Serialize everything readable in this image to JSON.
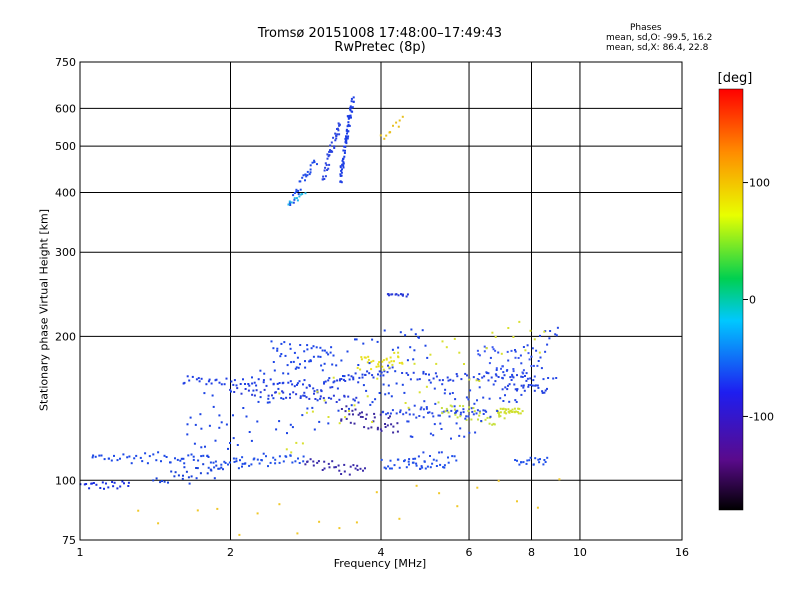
{
  "header": {
    "title_line1": "Tromsø 20151008 17:48:00–17:49:43",
    "title_line2": "RwPretec (8p)"
  },
  "phase_box": {
    "title": "Phases",
    "line1": "mean, sd,O: -99.5, 16.2",
    "line2": "mean, sd,X:  86.4, 22.8"
  },
  "colorbar": {
    "label": "[deg]",
    "ticks": [
      "100",
      "0",
      "-100"
    ]
  },
  "chart_data": {
    "type": "scatter",
    "xlabel": "Frequency [MHz]",
    "ylabel": "Stationary phase Virtual Height [km]",
    "xscale": "log",
    "yscale": "log",
    "xlim": [
      1,
      16
    ],
    "ylim": [
      75,
      750
    ],
    "x_ticks": [
      1,
      2,
      4,
      6,
      8,
      10,
      16
    ],
    "y_ticks": [
      75,
      100,
      200,
      300,
      400,
      500,
      600,
      750
    ],
    "grid": true,
    "colorbar_range": [
      -180,
      180
    ],
    "traces": [
      {
        "x0": 1.0,
        "x1": 1.25,
        "y0": 98,
        "y1": 98,
        "color": "#1a2de0",
        "n": 22,
        "jitter": 2
      },
      {
        "x0": 1.05,
        "x1": 1.8,
        "y0": 112,
        "y1": 112,
        "color": "#1b48e6",
        "n": 45,
        "jitter": 3
      },
      {
        "x0": 1.4,
        "x1": 1.9,
        "y0": 100,
        "y1": 108,
        "color": "#1740d8",
        "n": 25,
        "jitter": 3
      },
      {
        "x0": 1.8,
        "x1": 2.8,
        "y0": 108,
        "y1": 112,
        "color": "#2150e8",
        "n": 45,
        "jitter": 3
      },
      {
        "x0": 2.8,
        "x1": 3.7,
        "y0": 110,
        "y1": 104,
        "color": "#3a2aa8",
        "n": 30,
        "jitter": 3
      },
      {
        "x0": 1.6,
        "x1": 2.8,
        "y0": 163,
        "y1": 160,
        "color": "#1f3ee4",
        "n": 50,
        "jitter": 3
      },
      {
        "x0": 2.8,
        "x1": 4.2,
        "y0": 154,
        "y1": 172,
        "color": "#2440e0",
        "n": 45,
        "jitter": 4
      },
      {
        "x0": 2.0,
        "x1": 3.6,
        "y0": 155,
        "y1": 147,
        "color": "#2a3ad8",
        "n": 40,
        "jitter": 3
      },
      {
        "x0": 2.4,
        "x1": 3.2,
        "y0": 185,
        "y1": 180,
        "color": "#1d46e8",
        "n": 40,
        "jitter": 12
      },
      {
        "x0": 3.6,
        "x1": 4.4,
        "y0": 176,
        "y1": 182,
        "color": "#e8e020",
        "n": 30,
        "jitter": 6
      },
      {
        "x0": 3.3,
        "x1": 4.3,
        "y0": 140,
        "y1": 130,
        "color": "#3c2aa0",
        "n": 40,
        "jitter": 6
      },
      {
        "x0": 4.0,
        "x1": 5.6,
        "y0": 108,
        "y1": 110,
        "color": "#2050ea",
        "n": 40,
        "jitter": 3
      },
      {
        "x0": 4.0,
        "x1": 6.5,
        "y0": 138,
        "y1": 140,
        "color": "#2a4ae4",
        "n": 45,
        "jitter": 3
      },
      {
        "x0": 5.2,
        "x1": 7.0,
        "y0": 142,
        "y1": 135,
        "color": "#c8e040",
        "n": 35,
        "jitter": 5
      },
      {
        "x0": 6.8,
        "x1": 7.6,
        "y0": 140,
        "y1": 140,
        "color": "#d0e030",
        "n": 30,
        "jitter": 2
      },
      {
        "x0": 4.4,
        "x1": 8.0,
        "y0": 166,
        "y1": 164,
        "color": "#2542e2",
        "n": 45,
        "jitter": 3
      },
      {
        "x0": 6.2,
        "x1": 8.2,
        "y0": 185,
        "y1": 175,
        "color": "#3a58f0",
        "n": 30,
        "jitter": 10
      },
      {
        "x0": 7.0,
        "x1": 8.6,
        "y0": 158,
        "y1": 155,
        "color": "#2442e0",
        "n": 25,
        "jitter": 3
      },
      {
        "x0": 7.4,
        "x1": 8.6,
        "y0": 110,
        "y1": 110,
        "color": "#2050ea",
        "n": 20,
        "jitter": 2
      },
      {
        "x0": 4.1,
        "x1": 4.5,
        "y0": 245,
        "y1": 245,
        "color": "#2a3ad8",
        "n": 14,
        "jitter": 2
      },
      {
        "x0": 3.3,
        "x1": 3.5,
        "y0": 420,
        "y1": 630,
        "color": "#1d3ee4",
        "n": 70,
        "jitter": 12
      },
      {
        "x0": 3.05,
        "x1": 3.3,
        "y0": 430,
        "y1": 560,
        "color": "#2b45e0",
        "n": 40,
        "jitter": 12
      },
      {
        "x0": 2.6,
        "x1": 2.95,
        "y0": 375,
        "y1": 470,
        "color": "#1f4be8",
        "n": 30,
        "jitter": 10
      },
      {
        "x0": 2.6,
        "x1": 2.8,
        "y0": 385,
        "y1": 395,
        "color": "#22b8e8",
        "n": 10,
        "jitter": 6
      },
      {
        "x0": 4.0,
        "x1": 4.4,
        "y0": 520,
        "y1": 570,
        "color": "#e8c020",
        "n": 10,
        "jitter": 10
      },
      {
        "x0": 1.6,
        "x1": 5.0,
        "y0": 120,
        "y1": 190,
        "color": "#1c44e4",
        "n": 140,
        "jitter": 30
      },
      {
        "x0": 4.5,
        "x1": 9.0,
        "y0": 120,
        "y1": 190,
        "color": "#2548e6",
        "n": 110,
        "jitter": 25
      },
      {
        "x0": 2.5,
        "x1": 8.5,
        "y0": 130,
        "y1": 200,
        "color": "#d8e030",
        "n": 50,
        "jitter": 25
      },
      {
        "x0": 1.3,
        "x1": 9.0,
        "y0": 80,
        "y1": 95,
        "color": "#f0c828",
        "n": 22,
        "jitter": 8
      }
    ]
  }
}
